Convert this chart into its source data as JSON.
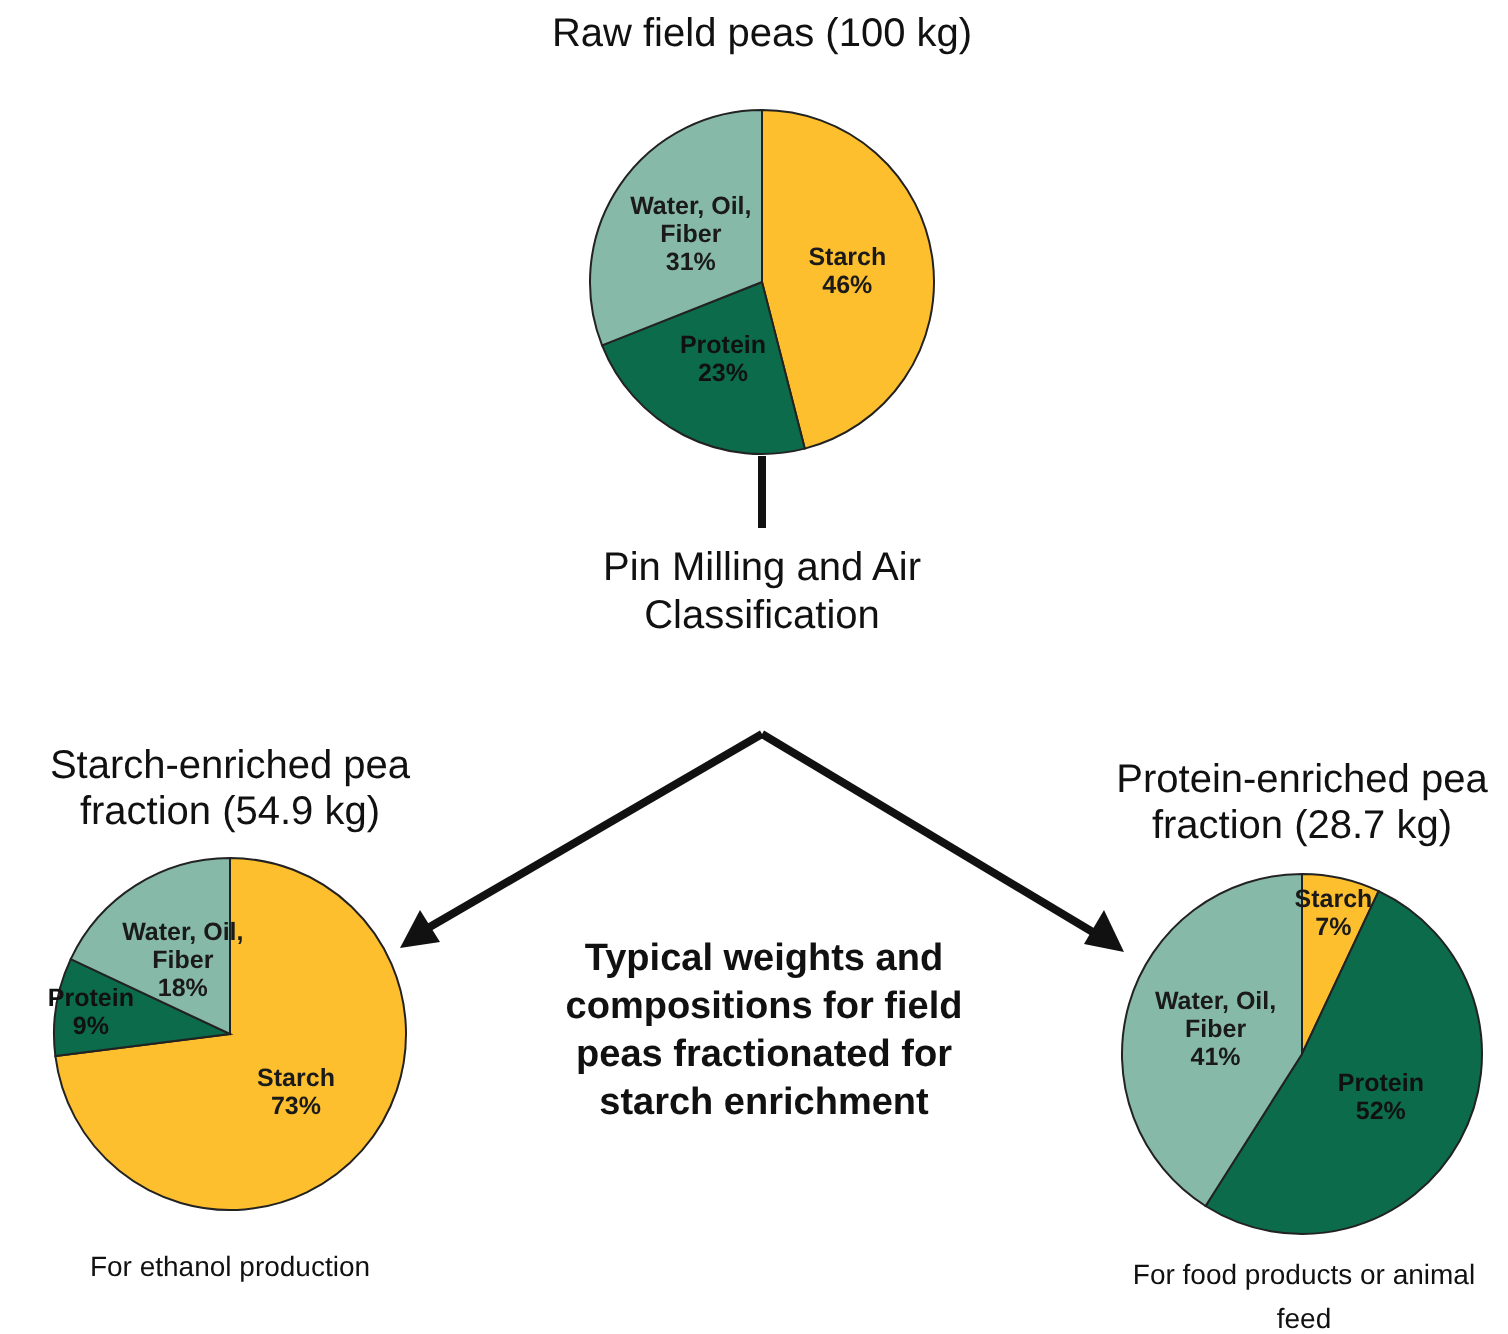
{
  "chart_data": [
    {
      "type": "pie",
      "title": "Raw field peas (100 kg)",
      "categories": [
        "Starch",
        "Protein",
        "Water, Oil, Fiber"
      ],
      "values": [
        46,
        23,
        31
      ],
      "value_labels": [
        "46%",
        "23%",
        "31%"
      ],
      "colors": [
        "#fdbf2d",
        "#0b6b4b",
        "#87b9a9"
      ]
    },
    {
      "type": "pie",
      "title": "Starch-enriched pea fraction (54.9 kg)",
      "categories": [
        "Starch",
        "Protein",
        "Water, Oil, Fiber"
      ],
      "values": [
        73,
        9,
        18
      ],
      "value_labels": [
        "73%",
        "9%",
        "18%"
      ],
      "colors": [
        "#fdbf2d",
        "#0b6b4b",
        "#87b9a9"
      ],
      "annotations": [
        "For ethanol production"
      ]
    },
    {
      "type": "pie",
      "title": "Protein-enriched pea fraction (28.7 kg)",
      "categories": [
        "Starch",
        "Protein",
        "Water, Oil, Fiber"
      ],
      "values": [
        7,
        52,
        41
      ],
      "value_labels": [
        "7%",
        "52%",
        "41%"
      ],
      "colors": [
        "#fdbf2d",
        "#0b6b4b",
        "#87b9a9"
      ],
      "annotations": [
        "For food products or animal feed"
      ]
    },
    {
      "type": "other",
      "annotations": [
        "Pin Milling and Air Classification",
        "Typical weights and compositions for field peas fractionated for starch enrichment"
      ]
    }
  ]
}
